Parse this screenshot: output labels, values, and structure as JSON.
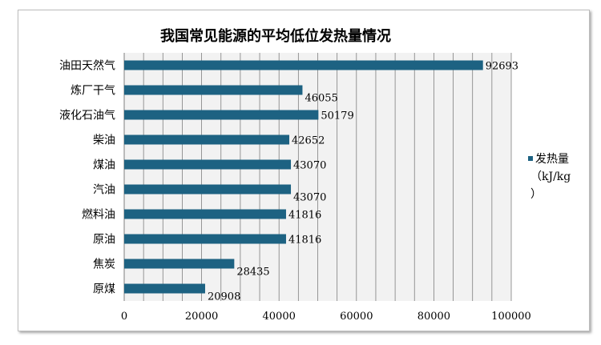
{
  "chart_data": {
    "type": "bar",
    "orientation": "horizontal",
    "title": "我国常见能源的平均低位发热量情况",
    "categories": [
      "油田天然气",
      "炼厂干气",
      "液化石油气",
      "柴油",
      "煤油",
      "汽油",
      "燃料油",
      "原油",
      "焦炭",
      "原煤"
    ],
    "series": [
      {
        "name": "发热量（kJ/kg）",
        "values": [
          92693,
          46055,
          50179,
          42652,
          43070,
          43070,
          41816,
          41816,
          28435,
          20908
        ]
      }
    ],
    "x_ticks": [
      "0",
      "20000",
      "40000",
      "60000",
      "80000",
      "100000"
    ],
    "xlim": [
      0,
      100000
    ],
    "grid": "vertical",
    "legend_position": "right",
    "legend_label_lines": [
      "发热量",
      "（kJ/kg",
      "）"
    ],
    "colors": {
      "bar": "#1d6282",
      "gridline": "#7f7f7f",
      "plot_background": "#f2f2f2"
    }
  }
}
